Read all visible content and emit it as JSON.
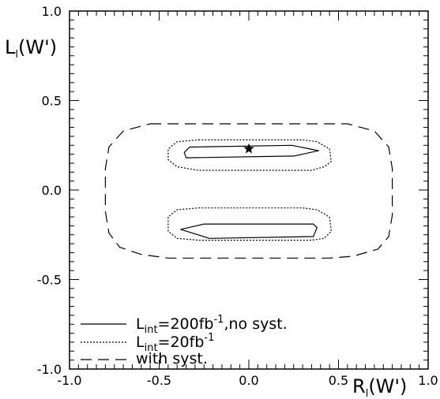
{
  "chart_data": {
    "type": "line",
    "title": "",
    "xlabel": {
      "main": "R",
      "sub": "l",
      "arg": "(W')"
    },
    "ylabel": {
      "main": "L",
      "sub": "l",
      "arg": "(W')"
    },
    "xlim": [
      -1.0,
      1.0
    ],
    "ylim": [
      -1.0,
      1.0
    ],
    "x_ticks": [
      "-1.0",
      "-0.5",
      "0.0",
      "0.5",
      "1.0"
    ],
    "y_ticks": [
      "-1.0",
      "-0.5",
      "0.0",
      "0.5",
      "1.0"
    ],
    "grid": false,
    "legend_position": "bottom-left",
    "star_point": {
      "x": 0.0,
      "y": 0.23
    },
    "series": [
      {
        "style": "solid",
        "legend": {
          "main": "L",
          "sub": "int",
          "rest1": "=200fb",
          "sup": "-1",
          "rest2": ",no syst."
        },
        "contours": [
          [
            [
              -0.33,
              0.24
            ],
            [
              0.24,
              0.25
            ],
            [
              0.39,
              0.22
            ],
            [
              0.25,
              0.19
            ],
            [
              -0.35,
              0.18
            ],
            [
              -0.36,
              0.21
            ],
            [
              -0.33,
              0.24
            ]
          ],
          [
            [
              -0.38,
              -0.22
            ],
            [
              -0.25,
              -0.19
            ],
            [
              0.36,
              -0.19
            ],
            [
              0.38,
              -0.21
            ],
            [
              0.36,
              -0.26
            ],
            [
              -0.22,
              -0.27
            ],
            [
              -0.38,
              -0.22
            ]
          ]
        ]
      },
      {
        "style": "dotted",
        "legend": {
          "main": "L",
          "sub": "int",
          "rest1": "=20fb",
          "sup": "-1",
          "rest2": ""
        },
        "contours": [
          [
            [
              -0.28,
              0.28
            ],
            [
              0.3,
              0.28
            ],
            [
              0.38,
              0.27
            ],
            [
              0.45,
              0.23
            ],
            [
              0.46,
              0.16
            ],
            [
              0.42,
              0.13
            ],
            [
              0.35,
              0.11
            ],
            [
              -0.28,
              0.11
            ],
            [
              -0.4,
              0.13
            ],
            [
              -0.45,
              0.17
            ],
            [
              -0.45,
              0.23
            ],
            [
              -0.4,
              0.27
            ],
            [
              -0.28,
              0.28
            ]
          ],
          [
            [
              -0.28,
              -0.1
            ],
            [
              0.3,
              -0.1
            ],
            [
              0.38,
              -0.11
            ],
            [
              0.45,
              -0.15
            ],
            [
              0.46,
              -0.23
            ],
            [
              0.42,
              -0.27
            ],
            [
              0.35,
              -0.28
            ],
            [
              -0.28,
              -0.28
            ],
            [
              -0.4,
              -0.27
            ],
            [
              -0.45,
              -0.23
            ],
            [
              -0.45,
              -0.15
            ],
            [
              -0.4,
              -0.11
            ],
            [
              -0.28,
              -0.1
            ]
          ]
        ]
      },
      {
        "style": "dashed",
        "legend": {
          "main": "with syst.",
          "sub": "",
          "rest1": "",
          "sup": "",
          "rest2": ""
        },
        "contours": [
          [
            [
              -0.55,
              0.37
            ],
            [
              0.55,
              0.37
            ],
            [
              0.7,
              0.33
            ],
            [
              0.78,
              0.24
            ],
            [
              0.8,
              0.12
            ],
            [
              0.8,
              -0.14
            ],
            [
              0.78,
              -0.26
            ],
            [
              0.72,
              -0.33
            ],
            [
              0.58,
              -0.37
            ],
            [
              0.45,
              -0.38
            ],
            [
              -0.45,
              -0.38
            ],
            [
              -0.6,
              -0.36
            ],
            [
              -0.72,
              -0.32
            ],
            [
              -0.78,
              -0.24
            ],
            [
              -0.8,
              -0.12
            ],
            [
              -0.8,
              0.12
            ],
            [
              -0.78,
              0.24
            ],
            [
              -0.7,
              0.33
            ],
            [
              -0.55,
              0.37
            ]
          ]
        ]
      }
    ]
  }
}
